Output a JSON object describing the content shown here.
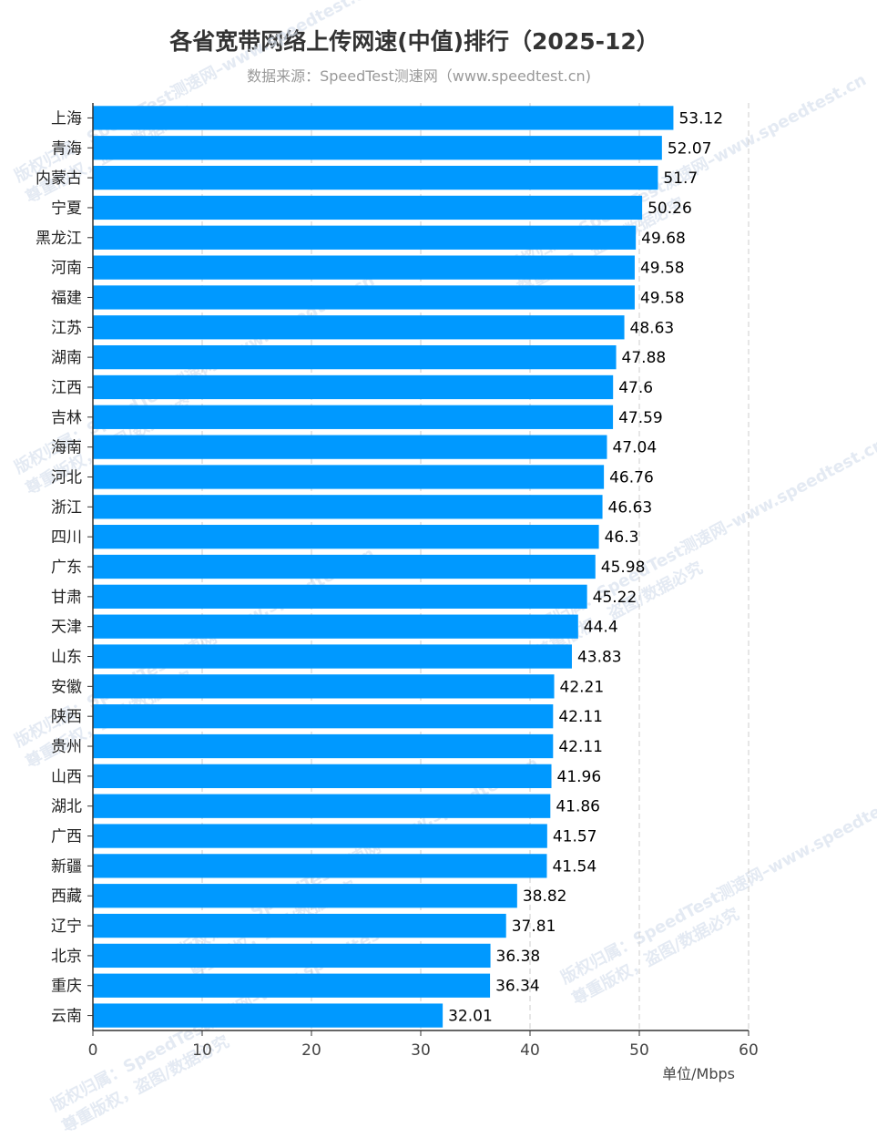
{
  "chart_data": {
    "type": "bar",
    "orientation": "horizontal",
    "title": "各省宽带网络上传网速(中值)排行（2025-12）",
    "subtitle": "数据来源：SpeedTest测速网（www.speedtest.cn)",
    "unit_label": "单位/Mbps",
    "categories": [
      "上海",
      "青海",
      "内蒙古",
      "宁夏",
      "黑龙江",
      "河南",
      "福建",
      "江苏",
      "湖南",
      "江西",
      "吉林",
      "海南",
      "河北",
      "浙江",
      "四川",
      "广东",
      "甘肃",
      "天津",
      "山东",
      "安徽",
      "陕西",
      "贵州",
      "山西",
      "湖北",
      "广西",
      "新疆",
      "西藏",
      "辽宁",
      "北京",
      "重庆",
      "云南"
    ],
    "values": [
      53.12,
      52.07,
      51.7,
      50.26,
      49.68,
      49.58,
      49.58,
      48.63,
      47.88,
      47.6,
      47.59,
      47.04,
      46.76,
      46.63,
      46.3,
      45.98,
      45.22,
      44.4,
      43.83,
      42.21,
      42.11,
      42.11,
      41.96,
      41.86,
      41.57,
      41.54,
      38.82,
      37.81,
      36.38,
      36.34,
      32.01
    ],
    "value_labels": [
      "53.12",
      "52.07",
      "51.7",
      "50.26",
      "49.68",
      "49.58",
      "49.58",
      "48.63",
      "47.88",
      "47.6",
      "47.59",
      "47.04",
      "46.76",
      "46.63",
      "46.3",
      "45.98",
      "45.22",
      "44.4",
      "43.83",
      "42.21",
      "42.11",
      "42.11",
      "41.96",
      "41.86",
      "41.57",
      "41.54",
      "38.82",
      "37.81",
      "36.38",
      "36.34",
      "32.01"
    ],
    "xlim": [
      0,
      60
    ],
    "xticks": [
      "0",
      "10",
      "20",
      "30",
      "40",
      "50",
      "60"
    ],
    "grid": "vertical dashed",
    "bar_color": "#0099ff"
  },
  "watermark": {
    "lines": [
      "版权归属：SpeedTest测速网–www.speedtest.cn",
      "尊重版权，盗图/数据必究"
    ]
  }
}
